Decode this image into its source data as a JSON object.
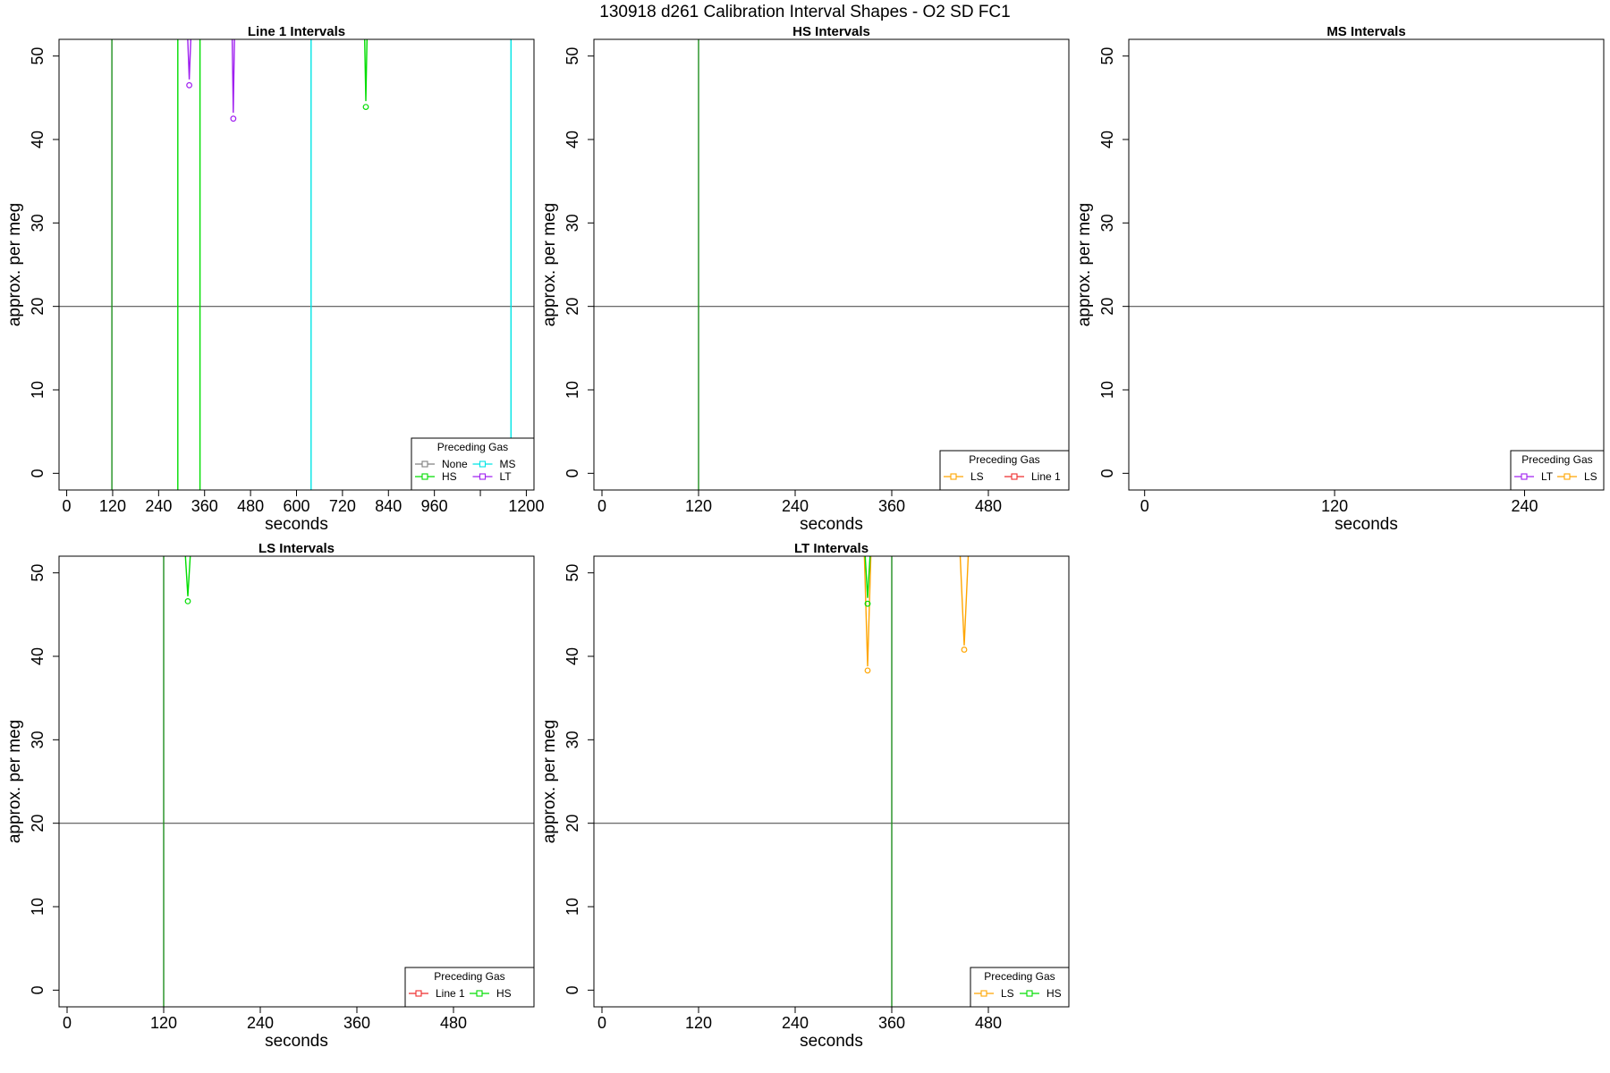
{
  "suptitle": "130918   d261   Calibration Interval Shapes - O2 SD FC1",
  "chart_data": [
    {
      "type": "line",
      "title": "Line 1 Intervals",
      "xlabel": "seconds",
      "ylabel": "approx. per meg",
      "xlim": [
        -20,
        1220
      ],
      "ylim": [
        -2,
        52
      ],
      "xticks": [
        0,
        120,
        240,
        360,
        480,
        600,
        720,
        840,
        960,
        1080,
        1200
      ],
      "xtick_labels": [
        "0",
        "120",
        "240",
        "360",
        "480",
        "600",
        "720",
        "840",
        "960",
        "",
        "1200"
      ],
      "yticks": [
        0,
        10,
        20,
        30,
        40,
        50
      ],
      "hline": 20,
      "legend": {
        "title": "Preceding Gas",
        "position": "bottom-right",
        "columns": 2,
        "entries": [
          {
            "name": "None",
            "color": "#808080"
          },
          {
            "name": "MS",
            "color": "#00e5e5"
          },
          {
            "name": "HS",
            "color": "#00dd00"
          },
          {
            "name": "LT",
            "color": "#a020f0"
          }
        ]
      },
      "series": [
        {
          "color": "#1f8f1f",
          "x": [
            118,
            118
          ],
          "y": [
            -2,
            52
          ]
        },
        {
          "color": "#00dd00",
          "x": [
            290,
            290
          ],
          "y": [
            -2,
            52
          ]
        },
        {
          "color": "#00dd00",
          "x": [
            348,
            348
          ],
          "y": [
            -2,
            52
          ]
        },
        {
          "color": "#00e5e5",
          "x": [
            638,
            638
          ],
          "y": [
            -2,
            52
          ]
        },
        {
          "color": "#00e5e5",
          "x": [
            1160,
            1160
          ],
          "y": [
            -2,
            52
          ]
        },
        {
          "color": "#a020f0",
          "x": [
            316,
            320,
            324
          ],
          "y": [
            52,
            47.2,
            52
          ]
        },
        {
          "color": "#a020f0",
          "x": [
            432,
            435,
            438
          ],
          "y": [
            52,
            43.2,
            52
          ]
        },
        {
          "color": "#00dd00",
          "x": [
            778,
            781,
            784
          ],
          "y": [
            52,
            44.6,
            52
          ]
        }
      ],
      "points": [
        {
          "color": "#a020f0",
          "x": 320,
          "y": 46.5
        },
        {
          "color": "#a020f0",
          "x": 435,
          "y": 42.5
        },
        {
          "color": "#00dd00",
          "x": 781,
          "y": 43.9
        }
      ]
    },
    {
      "type": "line",
      "title": "HS Intervals",
      "xlabel": "seconds",
      "ylabel": "approx. per meg",
      "xlim": [
        -10,
        580
      ],
      "ylim": [
        -2,
        52
      ],
      "xticks": [
        0,
        120,
        240,
        360,
        480
      ],
      "xtick_labels": [
        "0",
        "120",
        "240",
        "360",
        "480"
      ],
      "yticks": [
        0,
        10,
        20,
        30,
        40,
        50
      ],
      "hline": 20,
      "legend": {
        "title": "Preceding Gas",
        "position": "bottom-right",
        "columns": 2,
        "entries": [
          {
            "name": "LS",
            "color": "#ffa500"
          },
          {
            "name": "Line 1",
            "color": "#ee2c2c"
          }
        ]
      },
      "series": [
        {
          "color": "#1f8f1f",
          "x": [
            120,
            120
          ],
          "y": [
            -2,
            52
          ]
        }
      ],
      "points": []
    },
    {
      "type": "line",
      "title": "MS Intervals",
      "xlabel": "seconds",
      "ylabel": "approx. per meg",
      "xlim": [
        -10,
        290
      ],
      "ylim": [
        -2,
        52
      ],
      "xticks": [
        0,
        120,
        240
      ],
      "xtick_labels": [
        "0",
        "120",
        "240"
      ],
      "yticks": [
        0,
        10,
        20,
        30,
        40,
        50
      ],
      "hline": 20,
      "legend": {
        "title": "Preceding Gas",
        "position": "bottom-right",
        "columns": 2,
        "entries": [
          {
            "name": "LT",
            "color": "#a020f0"
          },
          {
            "name": "LS",
            "color": "#ffa500"
          }
        ]
      },
      "series": [],
      "points": []
    },
    {
      "type": "line",
      "title": "LS Intervals",
      "xlabel": "seconds",
      "ylabel": "approx. per meg",
      "xlim": [
        -10,
        580
      ],
      "ylim": [
        -2,
        52
      ],
      "xticks": [
        0,
        120,
        240,
        360,
        480
      ],
      "xtick_labels": [
        "0",
        "120",
        "240",
        "360",
        "480"
      ],
      "yticks": [
        0,
        10,
        20,
        30,
        40,
        50
      ],
      "hline": 20,
      "legend": {
        "title": "Preceding Gas",
        "position": "bottom-right",
        "columns": 2,
        "entries": [
          {
            "name": "Line 1",
            "color": "#ee2c2c"
          },
          {
            "name": "HS",
            "color": "#00dd00"
          }
        ]
      },
      "series": [
        {
          "color": "#1f8f1f",
          "x": [
            120,
            120
          ],
          "y": [
            -2,
            52
          ]
        },
        {
          "color": "#00dd00",
          "x": [
            147,
            150,
            153
          ],
          "y": [
            52,
            47.2,
            52
          ]
        }
      ],
      "points": [
        {
          "color": "#00dd00",
          "x": 150,
          "y": 46.6
        }
      ]
    },
    {
      "type": "line",
      "title": "LT Intervals",
      "xlabel": "seconds",
      "ylabel": "approx. per meg",
      "xlim": [
        -10,
        580
      ],
      "ylim": [
        -2,
        52
      ],
      "xticks": [
        0,
        120,
        240,
        360,
        480
      ],
      "xtick_labels": [
        "0",
        "120",
        "240",
        "360",
        "480"
      ],
      "yticks": [
        0,
        10,
        20,
        30,
        40,
        50
      ],
      "hline": 20,
      "legend": {
        "title": "Preceding Gas",
        "position": "bottom-right",
        "columns": 2,
        "entries": [
          {
            "name": "LS",
            "color": "#ffa500"
          },
          {
            "name": "HS",
            "color": "#00dd00"
          }
        ]
      },
      "series": [
        {
          "color": "#1f8f1f",
          "x": [
            360,
            360
          ],
          "y": [
            -2,
            52
          ]
        },
        {
          "color": "#ffa500",
          "x": [
            326,
            330,
            334
          ],
          "y": [
            52,
            38.8,
            52
          ]
        },
        {
          "color": "#00dd00",
          "x": [
            327,
            330,
            333
          ],
          "y": [
            52,
            47.0,
            52
          ]
        },
        {
          "color": "#ffa500",
          "x": [
            445,
            450,
            455
          ],
          "y": [
            52,
            41.3,
            52
          ]
        }
      ],
      "points": [
        {
          "color": "#ffa500",
          "x": 330,
          "y": 38.3
        },
        {
          "color": "#00dd00",
          "x": 330,
          "y": 46.3
        },
        {
          "color": "#ffa500",
          "x": 450,
          "y": 40.8
        }
      ]
    }
  ]
}
